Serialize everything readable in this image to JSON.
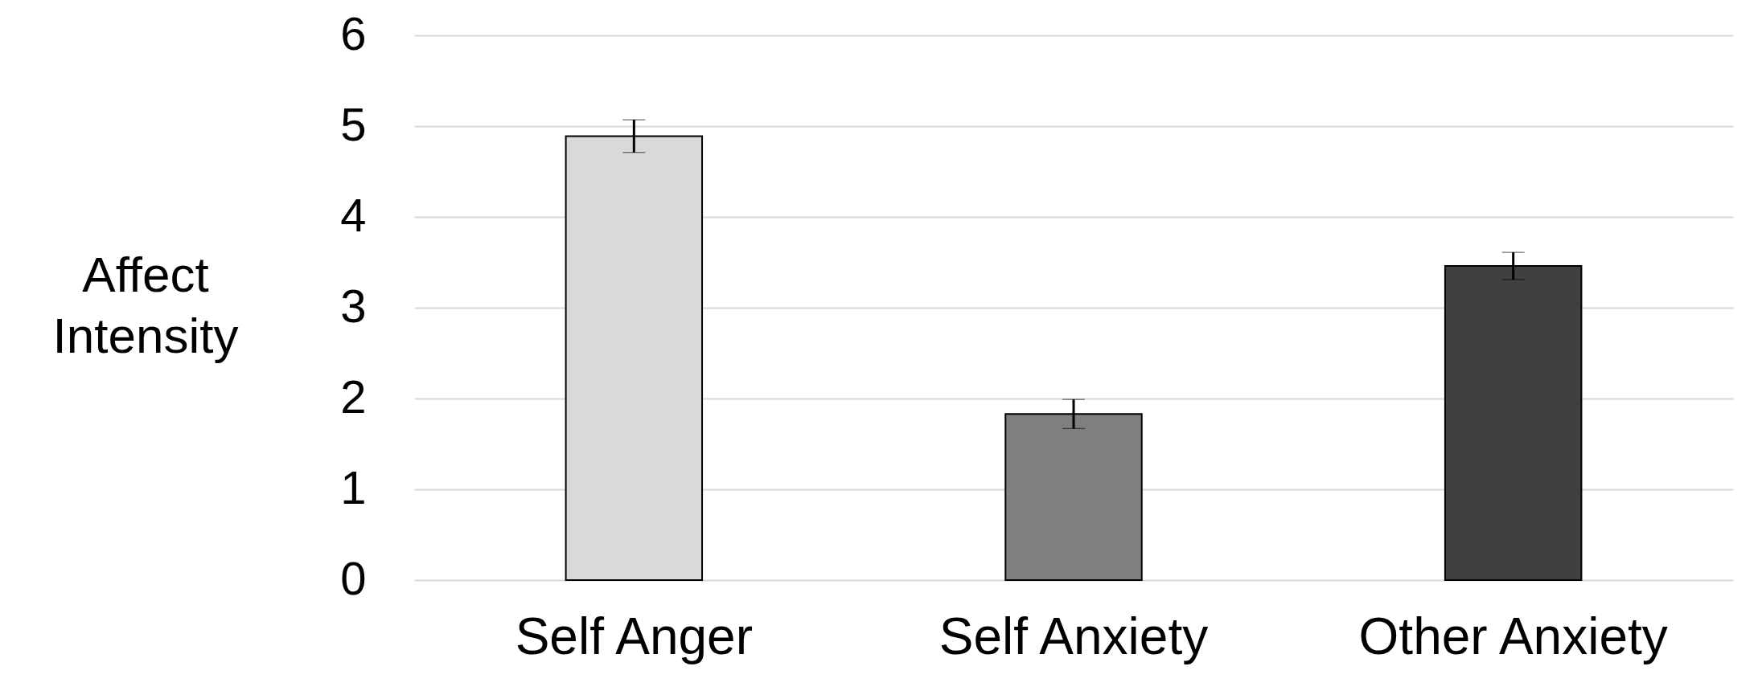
{
  "chart_data": {
    "type": "bar",
    "ylabel": "Affect Intensity",
    "categories": [
      "Self Anger",
      "Self Anxiety",
      "Other Anxiety"
    ],
    "values": [
      4.89,
      1.83,
      3.46
    ],
    "errors": [
      0.18,
      0.16,
      0.15
    ],
    "colors": [
      "#d9d9d9",
      "#7f7f7f",
      "#404040"
    ],
    "ylim": [
      0,
      6
    ],
    "yticks": [
      0,
      1,
      2,
      3,
      4,
      5,
      6
    ],
    "grid": "y",
    "legend": false
  }
}
